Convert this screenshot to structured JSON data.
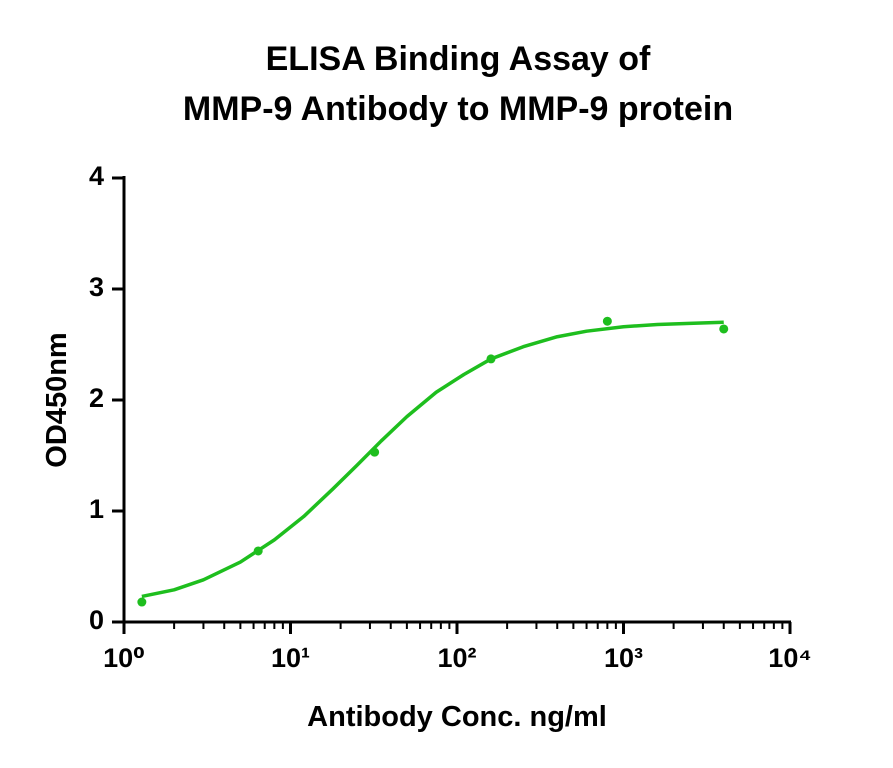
{
  "chart_data": {
    "type": "scatter",
    "title": [
      "ELISA Binding Assay of",
      "MMP-9 Antibody to MMP-9 protein"
    ],
    "x_label": "Antibody Conc. ng/ml",
    "y_label": "OD450nm",
    "xscale": "log",
    "xlim": [
      1,
      10000
    ],
    "xticks": [
      {
        "value": 1,
        "label": "10⁰"
      },
      {
        "value": 10,
        "label": "10¹"
      },
      {
        "value": 100,
        "label": "10²"
      },
      {
        "value": 1000,
        "label": "10³"
      },
      {
        "value": 10000,
        "label": "10⁴"
      }
    ],
    "ylim": [
      0,
      4
    ],
    "yticks": [
      0,
      1,
      2,
      3,
      4
    ],
    "grid": false,
    "series": [
      {
        "type": "scatter",
        "color": "#1ebe1e",
        "x": [
          1.28,
          6.4,
          32,
          160,
          800,
          4000
        ],
        "values": [
          0.18,
          0.64,
          1.53,
          2.37,
          2.71,
          2.64
        ]
      },
      {
        "type": "line",
        "color": "#1ebe1e",
        "x": [
          1.28,
          2,
          3,
          5,
          8,
          12,
          18,
          25,
          35,
          50,
          75,
          110,
          160,
          250,
          400,
          600,
          1000,
          1600,
          2500,
          4000
        ],
        "values": [
          0.23,
          0.29,
          0.38,
          0.54,
          0.74,
          0.95,
          1.2,
          1.41,
          1.63,
          1.85,
          2.07,
          2.23,
          2.37,
          2.48,
          2.57,
          2.62,
          2.66,
          2.68,
          2.69,
          2.7
        ]
      }
    ]
  }
}
